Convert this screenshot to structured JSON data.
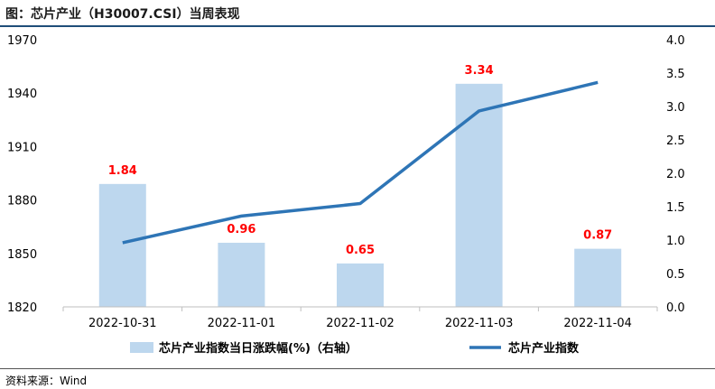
{
  "header": {
    "title": "图：芯片产业（H30007.CSI）当周表现"
  },
  "footer": {
    "source": "资料来源：Wind"
  },
  "chart_data": {
    "type": "bar+line",
    "categories": [
      "2022-10-31",
      "2022-11-01",
      "2022-11-02",
      "2022-11-03",
      "2022-11-04"
    ],
    "series": [
      {
        "name": "芯片产业指数当日涨跌幅(%)（右轴）",
        "type": "bar",
        "axis": "right",
        "values": [
          1.84,
          0.96,
          0.65,
          3.34,
          0.87
        ],
        "data_labels": [
          "1.84",
          "0.96",
          "0.65",
          "3.34",
          "0.87"
        ],
        "color": "#bdd7ee",
        "label_color": "#ff0000"
      },
      {
        "name": "芯片产业指数",
        "type": "line",
        "axis": "left",
        "values": [
          1856,
          1871,
          1878,
          1930,
          1946
        ],
        "color": "#2e75b6"
      }
    ],
    "y_left": {
      "ylim": [
        1820,
        1970
      ],
      "ticks": [
        "1820",
        "1850",
        "1880",
        "1910",
        "1940",
        "1970"
      ]
    },
    "y_right": {
      "ylim": [
        0,
        4.0
      ],
      "ticks": [
        "0.0",
        "0.5",
        "1.0",
        "1.5",
        "2.0",
        "2.5",
        "3.0",
        "3.5",
        "4.0"
      ]
    },
    "grid": false,
    "legend_position": "bottom"
  }
}
